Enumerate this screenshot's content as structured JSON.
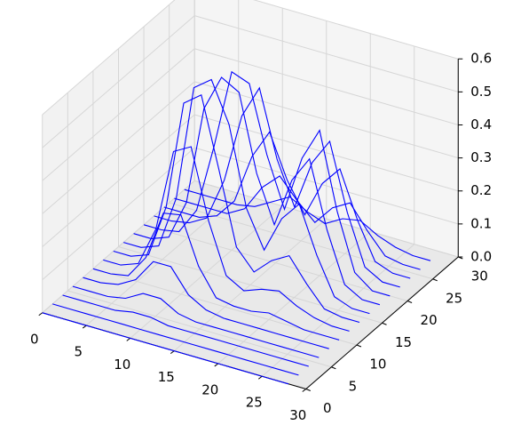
{
  "chart_data": {
    "type": "wireframe",
    "color": "#0000ff",
    "x": [
      0,
      2,
      4,
      6,
      8,
      10,
      12,
      14,
      16,
      18,
      20,
      22,
      24,
      26,
      28
    ],
    "y": [
      0,
      2,
      4,
      6,
      8,
      10,
      12,
      14,
      16,
      18,
      20,
      22,
      24,
      26,
      28
    ],
    "z": [
      [
        0,
        0,
        0,
        0,
        0,
        0,
        0,
        0,
        0,
        0,
        0,
        0,
        0,
        0,
        0
      ],
      [
        0,
        0,
        0,
        0,
        0,
        0,
        0,
        0,
        0,
        0,
        0,
        0,
        0,
        0,
        0
      ],
      [
        0,
        0,
        0,
        0,
        0.01,
        0.01,
        0,
        0,
        0,
        0,
        0,
        0,
        0,
        0,
        0
      ],
      [
        0,
        0,
        0,
        0.01,
        0.04,
        0.04,
        0.01,
        0,
        0,
        0,
        0,
        0,
        0,
        0,
        0
      ],
      [
        0,
        0,
        0.01,
        0.04,
        0.11,
        0.11,
        0.04,
        0.01,
        0,
        0,
        0,
        0,
        0,
        0,
        0
      ],
      [
        0,
        0,
        0.01,
        0.08,
        0.23,
        0.24,
        0.1,
        0.02,
        0.01,
        0.01,
        0.02,
        0.01,
        0,
        0,
        0
      ],
      [
        0,
        0,
        0.02,
        0.14,
        0.39,
        0.42,
        0.21,
        0.06,
        0.03,
        0.05,
        0.06,
        0.03,
        0.01,
        0,
        0
      ],
      [
        0,
        0,
        0.02,
        0.18,
        0.51,
        0.55,
        0.34,
        0.12,
        0.06,
        0.11,
        0.14,
        0.07,
        0.01,
        0,
        0
      ],
      [
        0,
        0,
        0.02,
        0.18,
        0.53,
        0.57,
        0.45,
        0.21,
        0.1,
        0.21,
        0.27,
        0.13,
        0.02,
        0,
        0
      ],
      [
        0,
        0,
        0.02,
        0.14,
        0.44,
        0.55,
        0.52,
        0.29,
        0.15,
        0.3,
        0.38,
        0.18,
        0.03,
        0,
        0
      ],
      [
        0,
        0,
        0.01,
        0.09,
        0.3,
        0.54,
        0.52,
        0.32,
        0.17,
        0.34,
        0.44,
        0.21,
        0.04,
        0,
        0
      ],
      [
        0,
        0,
        0.01,
        0.04,
        0.17,
        0.38,
        0.48,
        0.28,
        0.15,
        0.3,
        0.38,
        0.18,
        0.03,
        0,
        0
      ],
      [
        0,
        0,
        0,
        0.02,
        0.08,
        0.23,
        0.32,
        0.19,
        0.1,
        0.21,
        0.27,
        0.13,
        0.02,
        0,
        0
      ],
      [
        0,
        0,
        0,
        0,
        0.03,
        0.11,
        0.16,
        0.1,
        0.05,
        0.11,
        0.14,
        0.07,
        0.01,
        0,
        0
      ],
      [
        0,
        0,
        0,
        0,
        0.01,
        0.04,
        0.07,
        0.04,
        0.02,
        0.05,
        0.06,
        0.03,
        0.01,
        0,
        0
      ]
    ],
    "xlim": [
      0,
      30
    ],
    "ylim": [
      0,
      30
    ],
    "zlim": [
      0,
      0.6
    ],
    "xticks": [
      0,
      5,
      10,
      15,
      20,
      25,
      30
    ],
    "yticks": [
      0,
      5,
      10,
      15,
      20,
      25,
      30
    ],
    "zticks": [
      {
        "value": 0,
        "label": "0.0"
      },
      0.1,
      0.2,
      0.3,
      0.4,
      0.5,
      0.6
    ],
    "grid": true
  }
}
